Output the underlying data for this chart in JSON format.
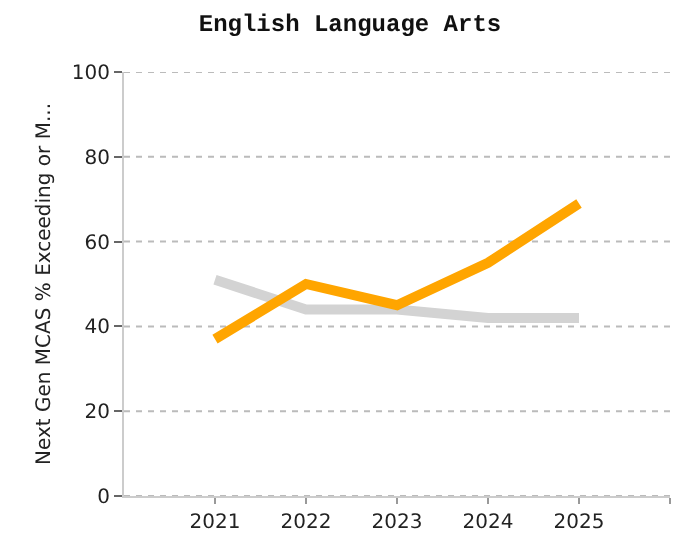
{
  "chart_data": {
    "type": "line",
    "title": "English Language Arts",
    "ylabel": "Next Gen MCAS % Exceeding or M...",
    "x": [
      2021,
      2022,
      2023,
      2024,
      2025
    ],
    "series": [
      {
        "color": "#d3d3d3",
        "values": [
          51,
          44,
          44,
          42,
          42
        ]
      },
      {
        "color": "#ffa500",
        "values": [
          37,
          50,
          45,
          55,
          69
        ]
      }
    ],
    "xlim": [
      2020,
      2026
    ],
    "xticks": [
      2021,
      2022,
      2023,
      2024,
      2025,
      {
        "value": 2026,
        "label": null
      }
    ],
    "ylim": [
      0,
      100
    ],
    "yticks": [
      0,
      20,
      40,
      60,
      80,
      100
    ],
    "grid": "y",
    "marker": "none",
    "line_style": "solid"
  }
}
